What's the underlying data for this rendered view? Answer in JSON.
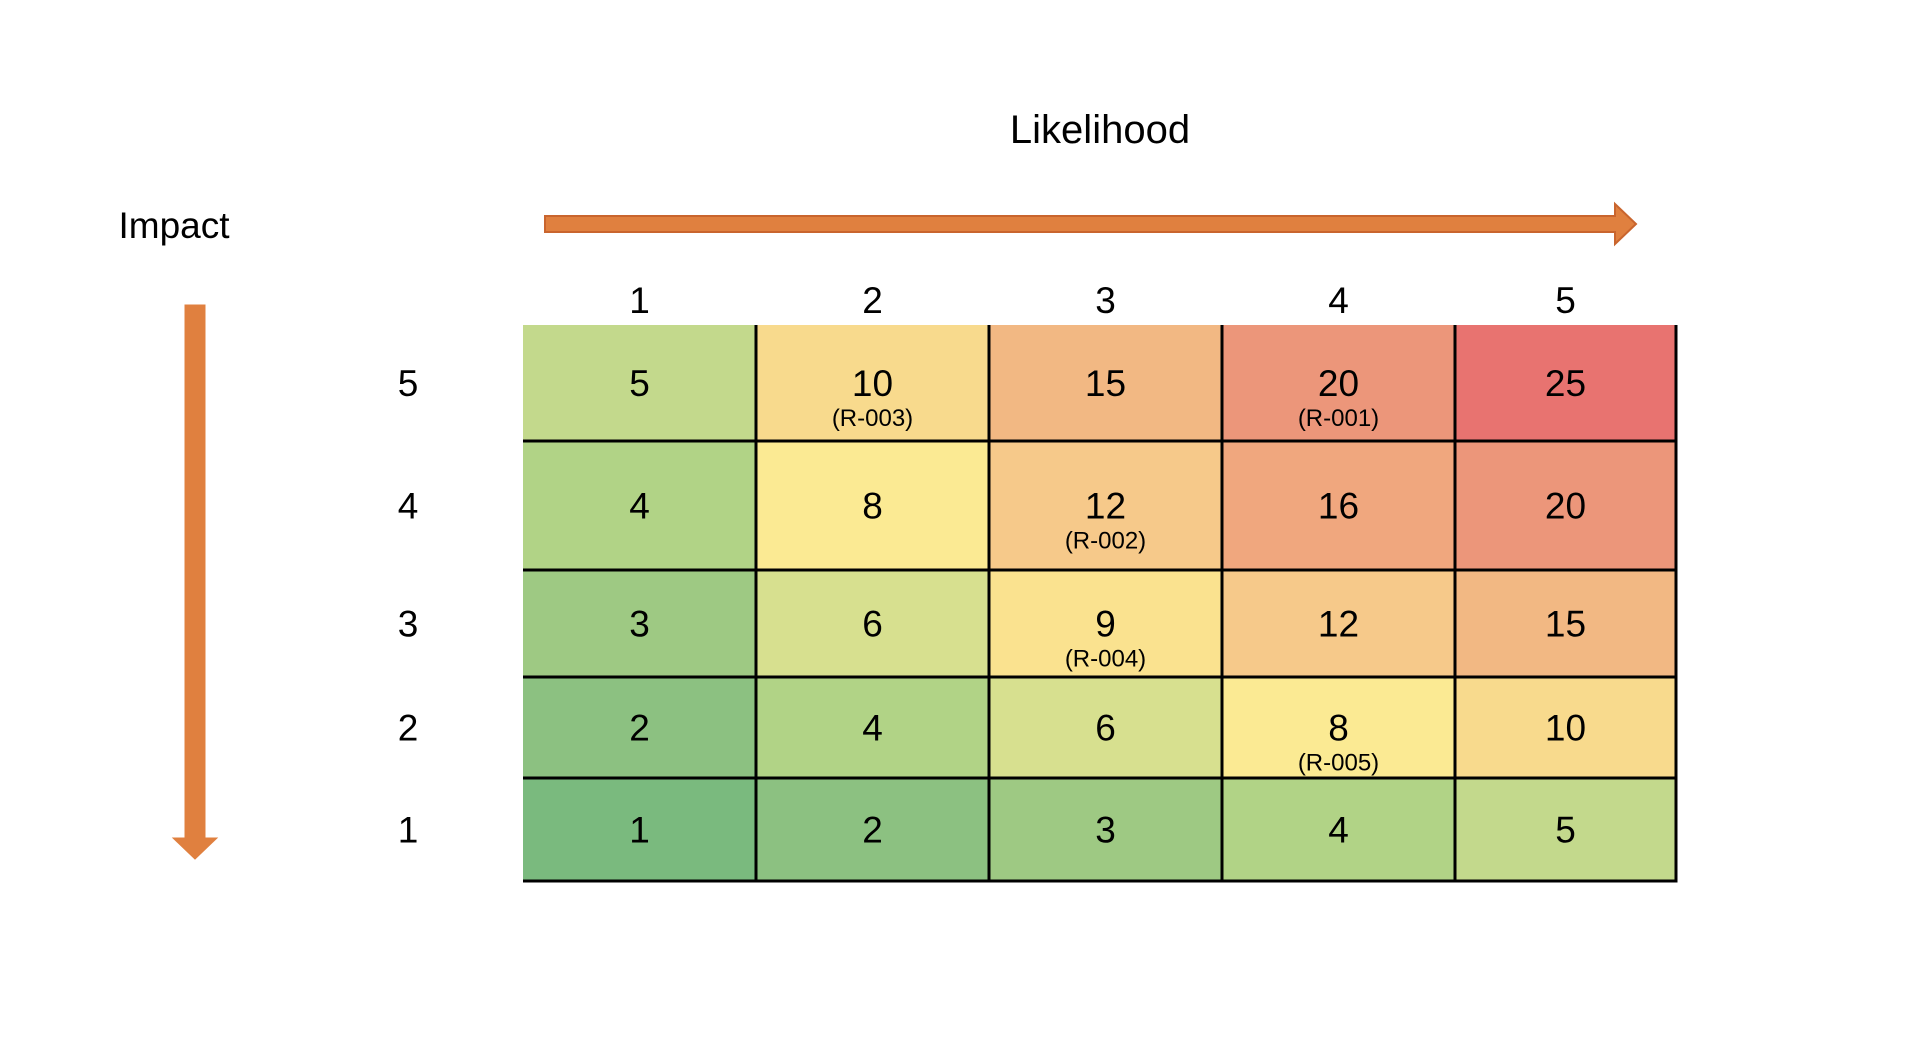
{
  "chart_data": {
    "type": "heatmap",
    "title": "",
    "xlabel": "Likelihood",
    "ylabel": "Impact",
    "x_ticks": [
      "1",
      "2",
      "3",
      "4",
      "5"
    ],
    "y_ticks": [
      "5",
      "4",
      "3",
      "2",
      "1"
    ],
    "rows": [
      {
        "impact": "5",
        "cells": [
          {
            "value": "5",
            "risk": "",
            "color": "#C3D98C"
          },
          {
            "value": "10",
            "risk": "(R-003)",
            "color": "#F8DA8D"
          },
          {
            "value": "15",
            "risk": "",
            "color": "#F2B883"
          },
          {
            "value": "20",
            "risk": "(R-001)",
            "color": "#EC967A"
          },
          {
            "value": "25",
            "risk": "",
            "color": "#E87370"
          }
        ]
      },
      {
        "impact": "4",
        "cells": [
          {
            "value": "4",
            "risk": "",
            "color": "#B1D386"
          },
          {
            "value": "8",
            "risk": "",
            "color": "#FBEA93"
          },
          {
            "value": "12",
            "risk": "(R-002)",
            "color": "#F6C98A"
          },
          {
            "value": "16",
            "risk": "",
            "color": "#F0A77E"
          },
          {
            "value": "20",
            "risk": "",
            "color": "#EC967A"
          }
        ]
      },
      {
        "impact": "3",
        "cells": [
          {
            "value": "3",
            "risk": "",
            "color": "#9EC983"
          },
          {
            "value": "6",
            "risk": "",
            "color": "#D7E08F"
          },
          {
            "value": "9",
            "risk": "(R-004)",
            "color": "#FAE28F"
          },
          {
            "value": "12",
            "risk": "",
            "color": "#F6C98A"
          },
          {
            "value": "15",
            "risk": "",
            "color": "#F2B883"
          }
        ]
      },
      {
        "impact": "2",
        "cells": [
          {
            "value": "2",
            "risk": "",
            "color": "#8CC181"
          },
          {
            "value": "4",
            "risk": "",
            "color": "#B1D386"
          },
          {
            "value": "6",
            "risk": "",
            "color": "#D7E08F"
          },
          {
            "value": "8",
            "risk": "(R-005)",
            "color": "#FBEA93"
          },
          {
            "value": "10",
            "risk": "",
            "color": "#F8DA8D"
          }
        ]
      },
      {
        "impact": "1",
        "cells": [
          {
            "value": "1",
            "risk": "",
            "color": "#7ABA7E"
          },
          {
            "value": "2",
            "risk": "",
            "color": "#8CC181"
          },
          {
            "value": "3",
            "risk": "",
            "color": "#9EC983"
          },
          {
            "value": "4",
            "risk": "",
            "color": "#B1D386"
          },
          {
            "value": "5",
            "risk": "",
            "color": "#C3D98C"
          }
        ]
      }
    ],
    "arrow_color": "#E0803F",
    "grid_line_color": "#000000"
  }
}
